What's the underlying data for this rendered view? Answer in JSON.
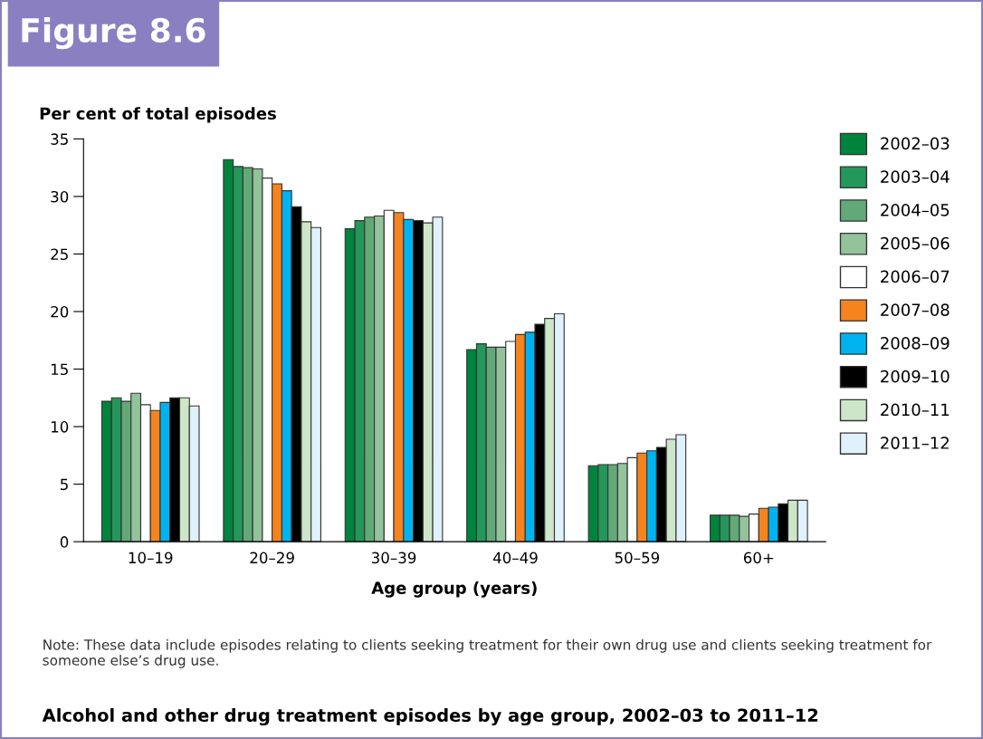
{
  "chart_data": {
    "type": "bar",
    "title": "Figure 8.6",
    "subtitle": "Alcohol and other drug treatment episodes by age group, 2002–03 to 2011–12",
    "xlabel": "Age group (years)",
    "ylabel": "Per cent of total episodes",
    "annotations": [
      "Note: These data include episodes relating to clients seeking treatment for their own drug use and clients seeking treatment for someone else’s drug use."
    ],
    "categories": [
      "10–19",
      "20–29",
      "30–39",
      "40–49",
      "50–59",
      "60+"
    ],
    "series": [
      {
        "name": "2002–03",
        "color": "#00843d",
        "values": [
          12.2,
          33.2,
          27.2,
          16.7,
          6.6,
          2.3
        ]
      },
      {
        "name": "2003–04",
        "color": "#24975a",
        "values": [
          12.5,
          32.6,
          27.9,
          17.2,
          6.7,
          2.3
        ]
      },
      {
        "name": "2004–05",
        "color": "#62a978",
        "values": [
          12.2,
          32.5,
          28.2,
          16.9,
          6.7,
          2.3
        ]
      },
      {
        "name": "2005–06",
        "color": "#93c39b",
        "values": [
          12.9,
          32.4,
          28.3,
          16.9,
          6.8,
          2.2
        ]
      },
      {
        "name": "2006–07",
        "color": "#ffffff",
        "values": [
          11.9,
          31.6,
          28.8,
          17.4,
          7.3,
          2.4
        ]
      },
      {
        "name": "2007–08",
        "color": "#f5841f",
        "values": [
          11.4,
          31.1,
          28.6,
          18.0,
          7.7,
          2.9
        ]
      },
      {
        "name": "2008–09",
        "color": "#00b3f0",
        "values": [
          12.1,
          30.5,
          28.0,
          18.2,
          7.9,
          3.0
        ]
      },
      {
        "name": "2009–10",
        "color": "#000000",
        "values": [
          12.5,
          29.1,
          27.9,
          18.9,
          8.2,
          3.3
        ]
      },
      {
        "name": "2010–11",
        "color": "#cde6c9",
        "values": [
          12.5,
          27.8,
          27.7,
          19.4,
          8.9,
          3.6
        ]
      },
      {
        "name": "2011–12",
        "color": "#dff1fb",
        "values": [
          11.8,
          27.3,
          28.2,
          19.8,
          9.3,
          3.6
        ]
      }
    ],
    "ylim": [
      0,
      35
    ],
    "yticks": [
      0,
      5,
      10,
      15,
      20,
      25,
      30,
      35
    ],
    "grid": false,
    "legend": "right"
  }
}
